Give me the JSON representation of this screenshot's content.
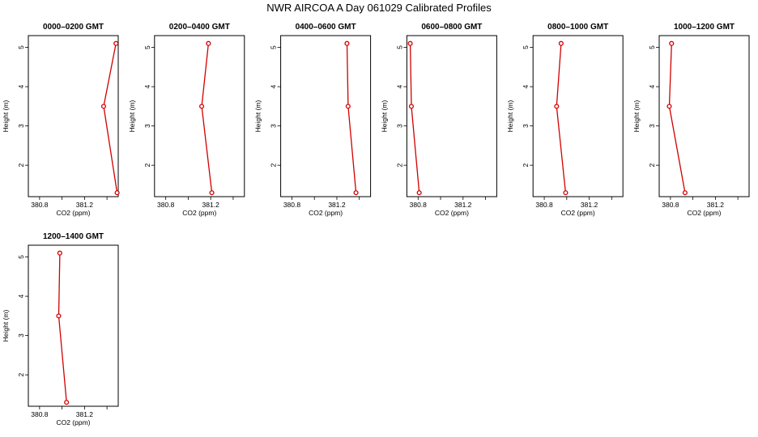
{
  "title": "NWR AIRCOA A  Day 061029  Calibrated Profiles",
  "colors": {
    "series": "#d00000",
    "frame": "#000000"
  },
  "chart_data": [
    {
      "type": "line",
      "title": "0000–0200 GMT",
      "xlabel": "CO2 (ppm)",
      "ylabel": "Height (m)",
      "xlim": [
        380.7,
        381.5
      ],
      "ylim": [
        1.2,
        5.3
      ],
      "xticks": [
        "380.8",
        "381.2"
      ],
      "yticks": [
        "2",
        "3",
        "4",
        "5"
      ],
      "grid": false,
      "x": [
        381.48,
        381.37,
        381.49
      ],
      "y": [
        5.1,
        3.5,
        1.3
      ]
    },
    {
      "type": "line",
      "title": "0200–0400 GMT",
      "xlabel": "CO2 (ppm)",
      "ylabel": "Height (m)",
      "xlim": [
        380.7,
        381.5
      ],
      "ylim": [
        1.2,
        5.3
      ],
      "xticks": [
        "380.8",
        "381.2"
      ],
      "yticks": [
        "2",
        "3",
        "4",
        "5"
      ],
      "grid": false,
      "x": [
        381.18,
        381.12,
        381.21
      ],
      "y": [
        5.1,
        3.5,
        1.3
      ]
    },
    {
      "type": "line",
      "title": "0400–0600 GMT",
      "xlabel": "CO2 (ppm)",
      "ylabel": "Height (m)",
      "xlim": [
        380.7,
        381.5
      ],
      "ylim": [
        1.2,
        5.3
      ],
      "xticks": [
        "380.8",
        "381.2"
      ],
      "yticks": [
        "2",
        "3",
        "4",
        "5"
      ],
      "grid": false,
      "x": [
        381.29,
        381.3,
        381.37
      ],
      "y": [
        5.1,
        3.5,
        1.3
      ]
    },
    {
      "type": "line",
      "title": "0600–0800 GMT",
      "xlabel": "CO2 (ppm)",
      "ylabel": "Height (m)",
      "xlim": [
        380.7,
        381.5
      ],
      "ylim": [
        1.2,
        5.3
      ],
      "xticks": [
        "380.8",
        "381.2"
      ],
      "yticks": [
        "2",
        "3",
        "4",
        "5"
      ],
      "grid": false,
      "x": [
        380.73,
        380.74,
        380.81
      ],
      "y": [
        5.1,
        3.5,
        1.3
      ]
    },
    {
      "type": "line",
      "title": "0800–1000 GMT",
      "xlabel": "CO2 (ppm)",
      "ylabel": "Height (m)",
      "xlim": [
        380.7,
        381.5
      ],
      "ylim": [
        1.2,
        5.3
      ],
      "xticks": [
        "380.8",
        "381.2"
      ],
      "yticks": [
        "2",
        "3",
        "4",
        "5"
      ],
      "grid": false,
      "x": [
        380.95,
        380.91,
        380.99
      ],
      "y": [
        5.1,
        3.5,
        1.3
      ]
    },
    {
      "type": "line",
      "title": "1000–1200 GMT",
      "xlabel": "CO2 (ppm)",
      "ylabel": "Height (m)",
      "xlim": [
        380.7,
        381.5
      ],
      "ylim": [
        1.2,
        5.3
      ],
      "xticks": [
        "380.8",
        "381.2"
      ],
      "yticks": [
        "2",
        "3",
        "4",
        "5"
      ],
      "grid": false,
      "x": [
        380.81,
        380.79,
        380.93
      ],
      "y": [
        5.1,
        3.5,
        1.3
      ]
    },
    {
      "type": "line",
      "title": "1200–1400 GMT",
      "xlabel": "CO2 (ppm)",
      "ylabel": "Height (m)",
      "xlim": [
        380.7,
        381.5
      ],
      "ylim": [
        1.2,
        5.3
      ],
      "xticks": [
        "380.8",
        "381.2"
      ],
      "yticks": [
        "2",
        "3",
        "4",
        "5"
      ],
      "grid": false,
      "x": [
        380.98,
        380.97,
        381.04
      ],
      "y": [
        5.1,
        3.5,
        1.3
      ]
    }
  ]
}
